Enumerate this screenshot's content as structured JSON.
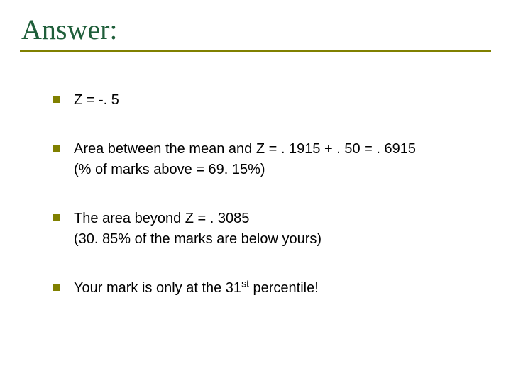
{
  "slide": {
    "title": "Answer:",
    "title_color": "#1f5e3a",
    "title_font": "Times New Roman",
    "title_fontsize": 40,
    "underline_color": "#808000",
    "background_color": "#ffffff",
    "bullet_color": "#808000",
    "bullet_size": 10,
    "body_fontsize": 20,
    "body_color": "#000000",
    "items": [
      {
        "lines": [
          "Z = -. 5"
        ]
      },
      {
        "lines": [
          "Area between the mean and Z = . 1915 + . 50 = . 6915",
          "(% of marks above = 69. 15%)"
        ]
      },
      {
        "lines": [
          "The area beyond Z = . 3085",
          "(30. 85% of the marks are below yours)"
        ]
      },
      {
        "lines_html": "Your mark is only at the 31<span class=\"sup\">st</span> percentile!"
      }
    ]
  }
}
